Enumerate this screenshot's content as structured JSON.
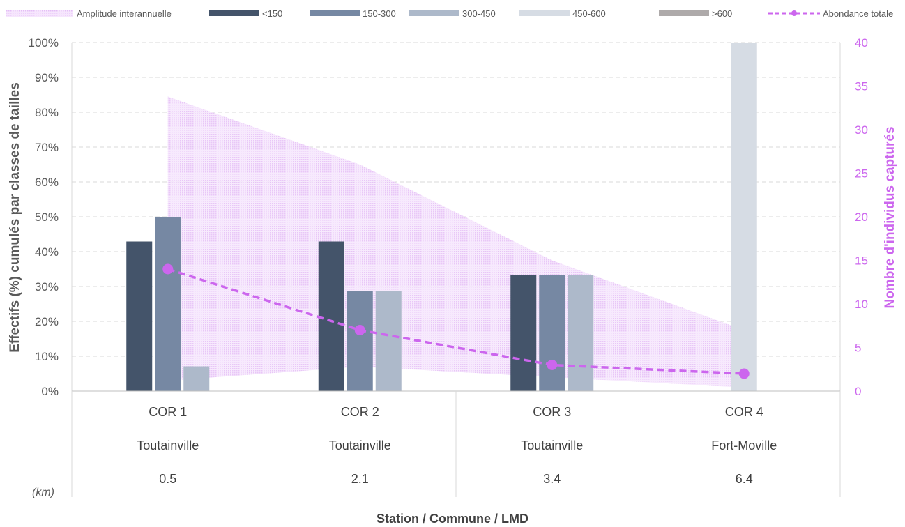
{
  "chart_data": {
    "type": "bar",
    "title": "",
    "xlabel": "Station / Commune / LMD",
    "unit_note": "(km)",
    "ylabel": "Effectifs (%) cumulés par classes de tailles",
    "y2label": "Nombre d'individus capturés",
    "ylim": [
      0,
      100
    ],
    "y2lim": [
      0,
      40
    ],
    "yticks": [
      "0%",
      "10%",
      "20%",
      "30%",
      "40%",
      "50%",
      "60%",
      "70%",
      "80%",
      "90%",
      "100%"
    ],
    "y2ticks": [
      "0",
      "5",
      "10",
      "15",
      "20",
      "25",
      "30",
      "35",
      "40"
    ],
    "grid": true,
    "legend_position": "top",
    "categories": [
      {
        "station": "COR 1",
        "commune": "Toutainville",
        "lmd": "0.5"
      },
      {
        "station": "COR 2",
        "commune": "Toutainville",
        "lmd": "2.1"
      },
      {
        "station": "COR 3",
        "commune": "Toutainville",
        "lmd": "3.4"
      },
      {
        "station": "COR 4",
        "commune": "Fort-Moville",
        "lmd": "6.4"
      }
    ],
    "series": [
      {
        "name": "<150",
        "color": "#44546a",
        "values": [
          42.9,
          42.9,
          33.3,
          0
        ]
      },
      {
        "name": "150-300",
        "color": "#7688a3",
        "values": [
          50.0,
          28.6,
          33.3,
          0
        ]
      },
      {
        "name": "300-450",
        "color": "#adb9ca",
        "values": [
          7.1,
          28.6,
          33.3,
          0
        ]
      },
      {
        "name": "450-600",
        "color": "#d6dce4",
        "values": [
          0,
          0,
          0,
          100
        ]
      },
      {
        "name": ">600",
        "color": "#aeaaaa",
        "values": [
          0,
          0,
          0,
          0
        ]
      }
    ],
    "amplitude": {
      "name": "Amplitude interannuelle",
      "color": "#e0b3f5",
      "upper": [
        84.5,
        65,
        37.5,
        17.5
      ],
      "lower": [
        3,
        7,
        4,
        1
      ]
    },
    "abondance": {
      "name": "Abondance totale",
      "color": "#cc66ee",
      "values": [
        14,
        7,
        3,
        2
      ]
    }
  }
}
